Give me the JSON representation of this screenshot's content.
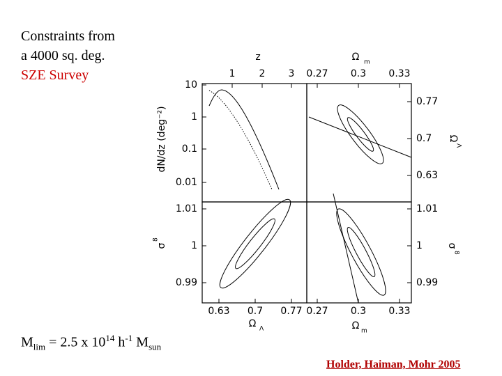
{
  "slide": {
    "intro": [
      "Constraints from",
      "a 4000 sq. deg.",
      "SZE Survey"
    ],
    "mass_limit": {
      "m": "M",
      "m_sub": "lim",
      "eq": " = 2.5 x 10",
      "exp": "14",
      "h": " h",
      "h_exp": "-1",
      "m2": " M",
      "m2_sub": "sun"
    },
    "credit": "Holder, Haiman, Mohr 2005"
  },
  "figure": {
    "top_x_labels": [
      "z",
      "Ω",
      "m"
    ],
    "z_ticks": [
      "1",
      "2",
      "3"
    ],
    "om_top_ticks": [
      "0.27",
      "0.3",
      "0.33"
    ],
    "dndz_label": "dN/dz  (deg⁻²)",
    "dndz_ticks": [
      "10",
      "1",
      "0.1",
      "0.01"
    ],
    "ol_right_label": "Ω",
    "ol_right_sub": "Λ",
    "ol_right_ticks": [
      "0.77",
      "0.7",
      "0.63"
    ],
    "s8_label": "σ",
    "s8_sub": "8",
    "s8_left_ticks": [
      "1.01",
      "1",
      "0.99"
    ],
    "s8_right_ticks": [
      "1.01",
      "1",
      "0.99"
    ],
    "ol_bottom_ticks": [
      "0.63",
      "0.7",
      "0.77"
    ],
    "om_bottom_ticks": [
      "0.27",
      "0.3",
      "0.33"
    ],
    "bottom_ol": [
      "Ω",
      "Λ"
    ],
    "bottom_om": [
      "Ω",
      "m"
    ]
  }
}
